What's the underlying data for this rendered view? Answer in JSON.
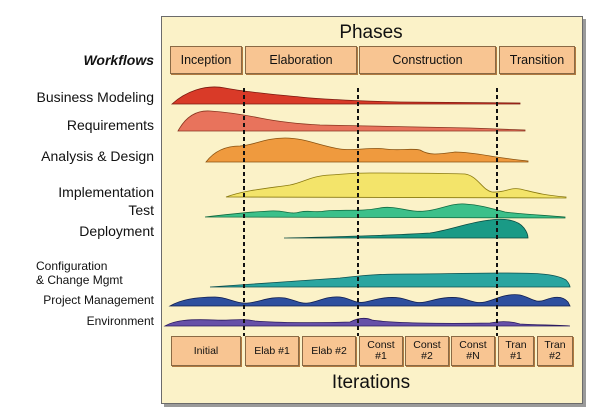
{
  "title_phases": "Phases",
  "title_iterations": "Iterations",
  "workflows_heading": "Workflows",
  "phases": [
    "Inception",
    "Elaboration",
    "Construction",
    "Transition"
  ],
  "iterations": [
    "Initial",
    "Elab #1",
    "Elab #2",
    "Const\n#1",
    "Const\n#2",
    "Const\n#N",
    "Tran\n#1",
    "Tran\n#2"
  ],
  "workflows": [
    {
      "label": "Business Modeling",
      "color": "#d93a28"
    },
    {
      "label": "Requirements",
      "color": "#e8735c"
    },
    {
      "label": "Analysis & Design",
      "color": "#ef9a3e"
    },
    {
      "label": "Implementation",
      "color": "#f3e46a"
    },
    {
      "label": "Test",
      "color": "#3cc08a"
    },
    {
      "label": "Deployment",
      "color": "#1a9a86"
    },
    {
      "label": "Configuration\n& Change Mgmt",
      "color": "#2aa5a0"
    },
    {
      "label": "Project Management",
      "color": "#2e4f9e"
    },
    {
      "label": "Environment",
      "color": "#6650a8"
    }
  ]
}
